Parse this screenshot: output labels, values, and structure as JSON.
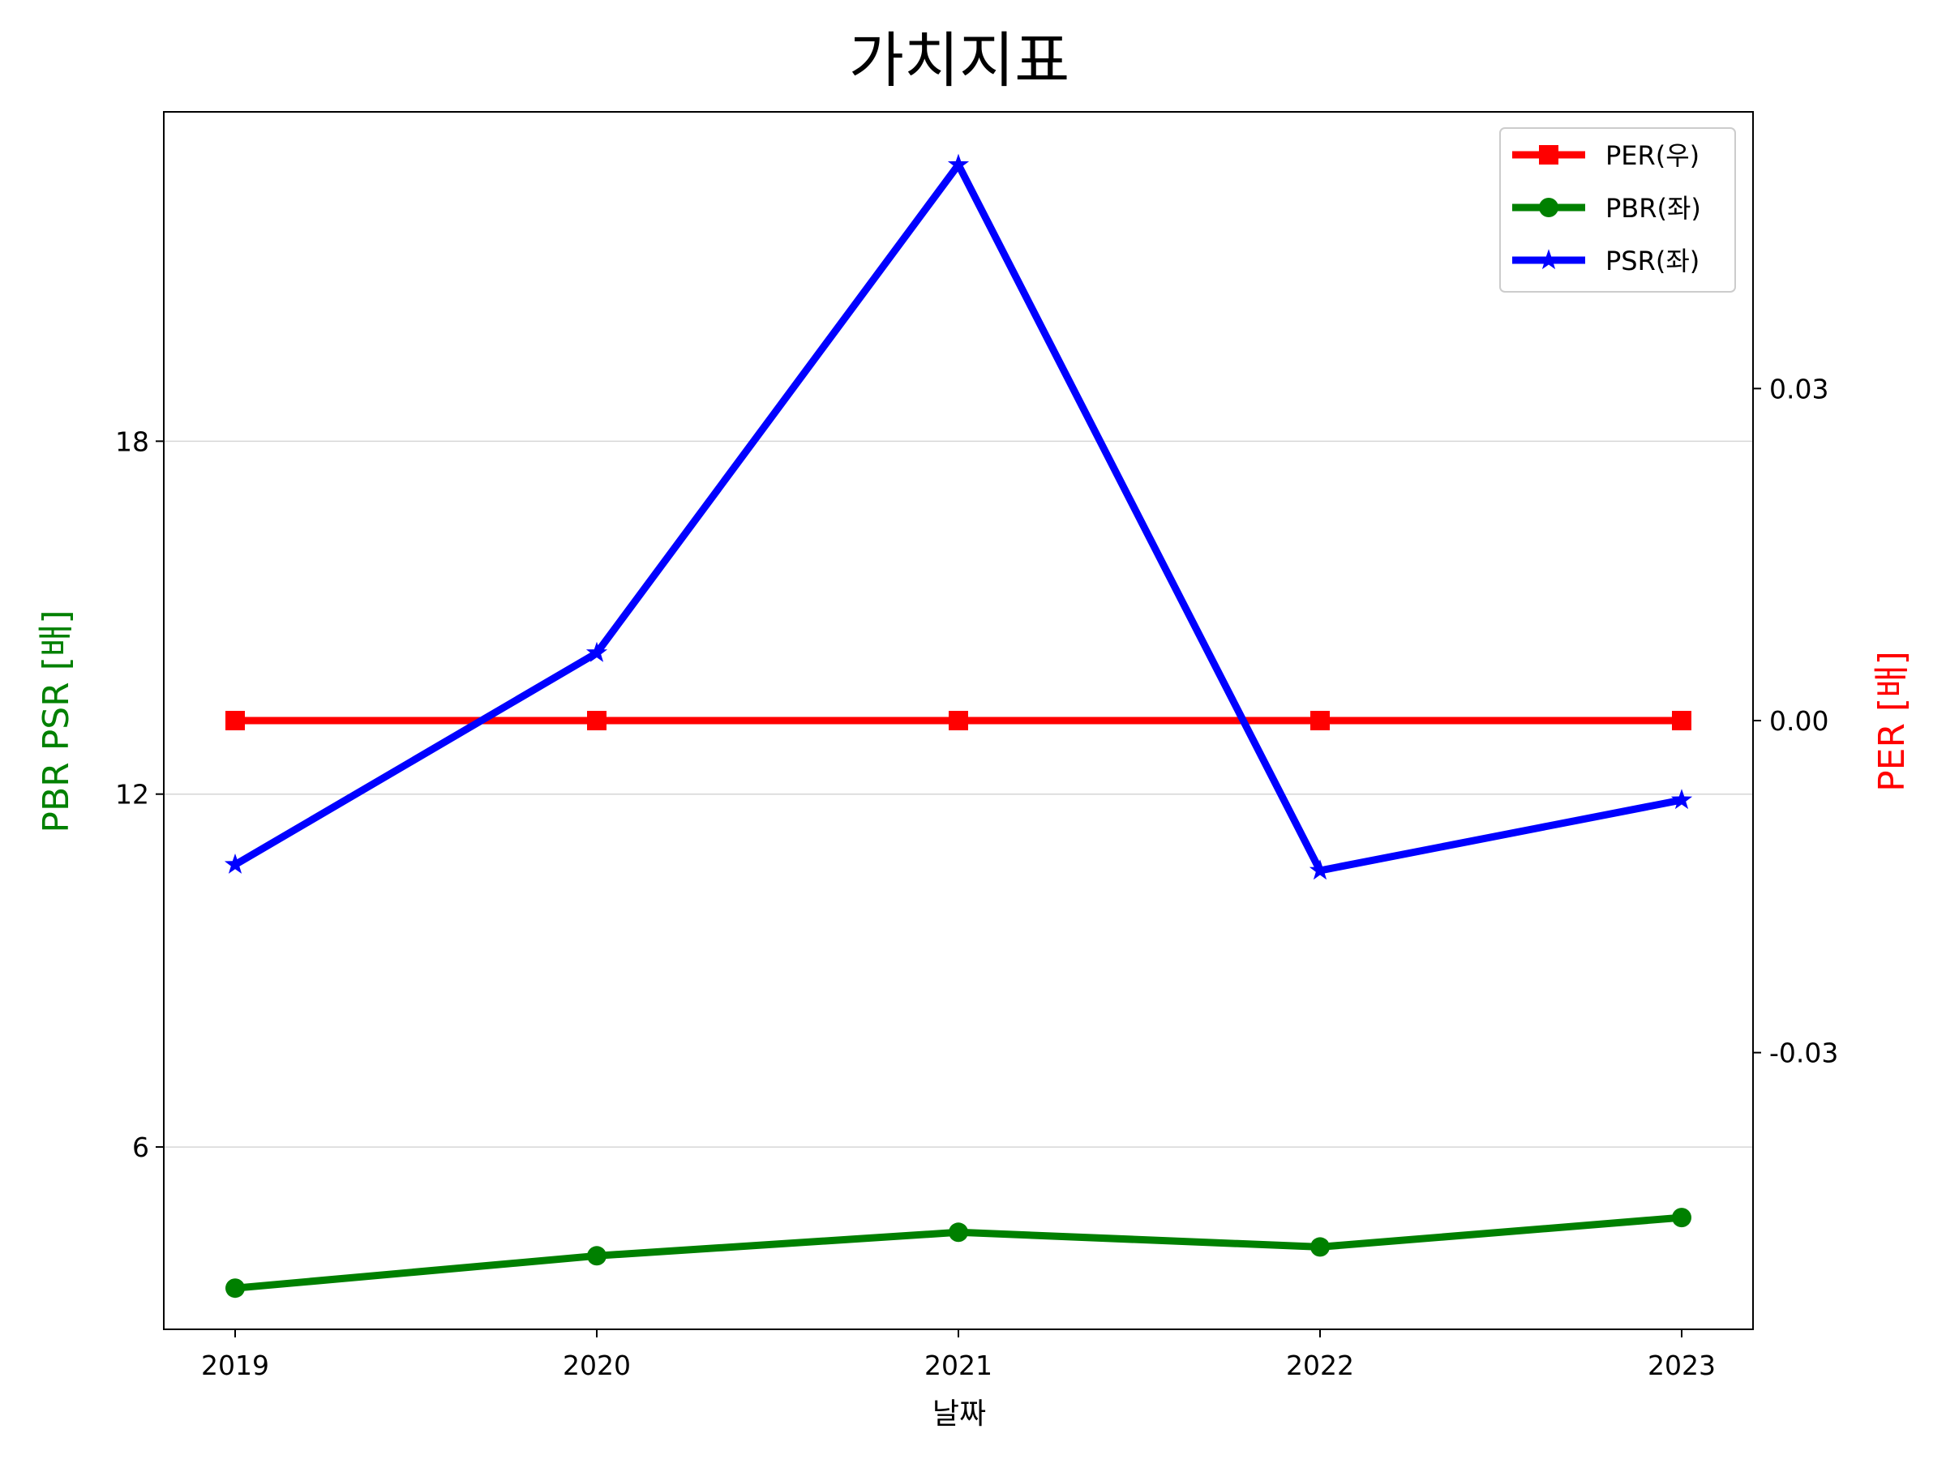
{
  "chart_data": {
    "type": "line",
    "title": "가치지표",
    "xlabel": "날짜",
    "x": [
      "2019",
      "2020",
      "2021",
      "2022",
      "2023"
    ],
    "left_axis": {
      "label": "PBR PSR [배]",
      "label_color": "#008000",
      "ticks": [
        "6",
        "12",
        "18"
      ],
      "tick_values": [
        6,
        12,
        18
      ],
      "ylim": [
        2.9,
        23.6
      ],
      "grid": true
    },
    "right_axis": {
      "label": "PER [배]",
      "label_color": "#ff0000",
      "ticks": [
        "0.03",
        "0.00",
        "-0.03"
      ],
      "tick_values": [
        0.03,
        0.0,
        -0.03
      ],
      "ylim": [
        -0.055,
        0.055
      ]
    },
    "series": [
      {
        "name": "PER(우)",
        "axis": "right",
        "color": "#ff0000",
        "marker": "square",
        "values": [
          0.0,
          0.0,
          0.0,
          0.0,
          0.0
        ]
      },
      {
        "name": "PBR(좌)",
        "axis": "left",
        "color": "#008000",
        "marker": "circle",
        "values": [
          3.6,
          4.15,
          4.55,
          4.3,
          4.8
        ]
      },
      {
        "name": "PSR(좌)",
        "axis": "left",
        "color": "#0000ff",
        "marker": "star",
        "values": [
          10.8,
          14.4,
          22.7,
          10.7,
          11.9
        ]
      }
    ],
    "legend": "top-right"
  }
}
